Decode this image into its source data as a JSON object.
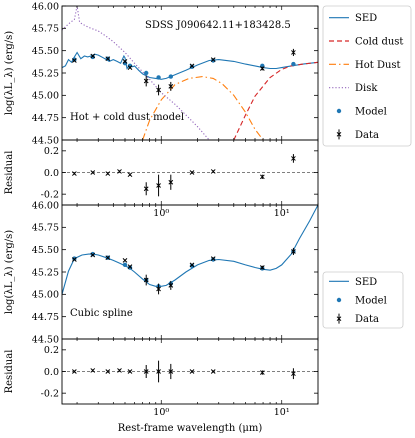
{
  "chart_data": {
    "type": "line",
    "xlabel": "Rest-frame wavelength (μm)",
    "x_axis": {
      "scale": "log",
      "range": [
        0.15,
        20
      ],
      "ticks": [
        1,
        10
      ],
      "tick_labels": [
        "10⁰",
        "10¹"
      ]
    },
    "panels": [
      {
        "id": "top-main",
        "annotation_object": "SDSS J090642.11+183428.5",
        "annotation_model": "Hot + cold dust model",
        "ylabel": "log(λL_λ) (erg/s)",
        "ylim": [
          44.5,
          46.0
        ],
        "yticks": [
          "46.00",
          "45.75",
          "45.50",
          "45.25",
          "45.00",
          "44.75",
          "44.50"
        ],
        "legend": {
          "placement": "outside-right",
          "entries": [
            {
              "label": "SED",
              "style": "solid",
              "color": "#1f77b4"
            },
            {
              "label": "Cold dust",
              "style": "dashed",
              "color": "#d62728"
            },
            {
              "label": "Hot Dust",
              "style": "dashdot",
              "color": "#ff7f0e"
            },
            {
              "label": "Disk",
              "style": "dotted",
              "color": "#9467bd"
            },
            {
              "label": "Model",
              "style": "marker-dot",
              "color": "#1f77b4"
            },
            {
              "label": "Data",
              "style": "marker-x-errorbar",
              "color": "#000000"
            }
          ]
        },
        "series": [
          {
            "name": "SED",
            "color": "#1f77b4",
            "style": "solid",
            "x": [
              0.15,
              0.16,
              0.17,
              0.18,
              0.19,
              0.2,
              0.215,
              0.23,
              0.245,
              0.26,
              0.28,
              0.3,
              0.33,
              0.37,
              0.4,
              0.43,
              0.46,
              0.49,
              0.5,
              0.52,
              0.55,
              0.58,
              0.6,
              0.65,
              0.7,
              0.8,
              0.9,
              1.0,
              1.1,
              1.3,
              1.6,
              2.0,
              2.5,
              3.0,
              4.0,
              5.0,
              6.0,
              7.0,
              8.0,
              9.0,
              10.0,
              12.0,
              15.0,
              20.0
            ],
            "y": [
              45.31,
              45.33,
              45.4,
              45.37,
              45.43,
              45.48,
              45.41,
              45.44,
              45.43,
              45.44,
              45.46,
              45.45,
              45.42,
              45.38,
              45.4,
              45.38,
              45.36,
              45.44,
              45.42,
              45.3,
              45.34,
              45.32,
              45.33,
              45.28,
              45.24,
              45.2,
              45.19,
              45.18,
              45.19,
              45.23,
              45.28,
              45.34,
              45.39,
              45.4,
              45.38,
              45.35,
              45.33,
              45.31,
              45.3,
              45.3,
              45.31,
              45.33,
              45.35,
              45.37
            ]
          },
          {
            "name": "Cold dust",
            "color": "#d62728",
            "style": "dashed",
            "x": [
              4.0,
              5.0,
              6.0,
              8.0,
              10.0,
              12.0,
              15.0,
              20.0
            ],
            "y": [
              44.5,
              44.78,
              44.99,
              45.2,
              45.29,
              45.33,
              45.35,
              45.37
            ]
          },
          {
            "name": "Hot Dust",
            "color": "#ff7f0e",
            "style": "dashdot",
            "x": [
              0.7,
              0.8,
              1.0,
              1.3,
              1.7,
              2.2,
              2.7,
              3.2,
              4.0,
              5.0,
              6.0,
              7.0
            ],
            "y": [
              44.5,
              44.72,
              44.95,
              45.12,
              45.19,
              45.21,
              45.19,
              45.13,
              45.0,
              44.81,
              44.62,
              44.5
            ]
          },
          {
            "name": "Disk",
            "color": "#9467bd",
            "style": "dotted",
            "x": [
              0.15,
              0.17,
              0.19,
              0.2,
              0.21,
              0.22,
              0.25,
              0.3,
              0.35,
              0.4,
              0.5,
              0.6,
              0.8,
              1.0,
              1.3,
              1.6,
              2.0,
              2.5
            ],
            "y": [
              45.73,
              45.8,
              45.85,
              46.0,
              45.82,
              45.8,
              45.76,
              45.72,
              45.66,
              45.6,
              45.48,
              45.36,
              45.18,
              45.03,
              44.9,
              44.78,
              44.65,
              44.5
            ]
          }
        ],
        "model_points": {
          "x": [
            0.19,
            0.27,
            0.36,
            0.5,
            0.55,
            0.75,
            0.95,
            1.2,
            1.8,
            2.7,
            6.9,
            12.5
          ],
          "y": [
            45.4,
            45.43,
            45.41,
            45.36,
            45.33,
            45.25,
            45.2,
            45.21,
            45.32,
            45.39,
            45.33,
            45.35
          ]
        },
        "data_points": {
          "x": [
            0.19,
            0.27,
            0.36,
            0.5,
            0.55,
            0.75,
            0.95,
            1.2,
            1.8,
            2.7,
            6.9,
            12.5
          ],
          "y": [
            45.39,
            45.44,
            45.41,
            45.38,
            45.31,
            45.16,
            45.06,
            45.1,
            45.33,
            45.4,
            45.3,
            45.48
          ],
          "yerr": [
            0.01,
            0.01,
            0.01,
            0.01,
            0.01,
            0.06,
            0.06,
            0.05,
            0.01,
            0.01,
            0.02,
            0.04
          ]
        }
      },
      {
        "id": "top-residual",
        "ylabel": "Residual",
        "ylim": [
          -0.3,
          0.3
        ],
        "yticks": [
          "0.2",
          "0.0",
          "-0.2"
        ],
        "reference_line": 0.0,
        "data_points": {
          "x": [
            0.19,
            0.27,
            0.36,
            0.45,
            0.55,
            0.75,
            0.95,
            1.2,
            1.8,
            2.7,
            6.9,
            12.5
          ],
          "y": [
            -0.01,
            0.0,
            -0.01,
            0.01,
            -0.02,
            -0.15,
            -0.12,
            -0.09,
            0.0,
            0.01,
            -0.04,
            0.13
          ],
          "yerr": [
            0.01,
            0.01,
            0.01,
            0.01,
            0.01,
            0.06,
            0.1,
            0.07,
            0.01,
            0.01,
            0.02,
            0.04
          ]
        }
      },
      {
        "id": "bottom-main",
        "annotation_model": "Cubic spline",
        "ylabel": "log(λL_λ) (erg/s)",
        "ylim": [
          44.5,
          46.0
        ],
        "yticks": [
          "46.00",
          "45.75",
          "45.50",
          "45.25",
          "45.00",
          "44.75",
          "44.50"
        ],
        "legend": {
          "placement": "outside-right",
          "entries": [
            {
              "label": "SED",
              "style": "solid",
              "color": "#1f77b4"
            },
            {
              "label": "Model",
              "style": "marker-dot",
              "color": "#1f77b4"
            },
            {
              "label": "Data",
              "style": "marker-x-errorbar",
              "color": "#000000"
            }
          ]
        },
        "series": [
          {
            "name": "SED",
            "color": "#1f77b4",
            "style": "solid",
            "x": [
              0.15,
              0.17,
              0.19,
              0.22,
              0.25,
              0.27,
              0.3,
              0.35,
              0.4,
              0.45,
              0.5,
              0.55,
              0.6,
              0.7,
              0.8,
              0.9,
              1.0,
              1.1,
              1.3,
              1.6,
              2.0,
              2.5,
              3.0,
              4.0,
              5.0,
              6.0,
              7.0,
              8.0,
              9.0,
              10.0,
              12.0,
              14.0,
              17.0,
              20.0
            ],
            "y": [
              45.0,
              45.26,
              45.4,
              45.44,
              45.45,
              45.45,
              45.44,
              45.41,
              45.38,
              45.35,
              45.32,
              45.29,
              45.25,
              45.17,
              45.11,
              45.09,
              45.09,
              45.1,
              45.16,
              45.25,
              45.33,
              45.38,
              45.39,
              45.37,
              45.33,
              45.3,
              45.28,
              45.27,
              45.29,
              45.33,
              45.45,
              45.62,
              45.82,
              46.0
            ]
          }
        ],
        "model_points": {
          "x": [
            0.19,
            0.27,
            0.36,
            0.5,
            0.55,
            0.75,
            0.95,
            1.2,
            1.8,
            2.7,
            6.9,
            12.5
          ],
          "y": [
            45.4,
            45.45,
            45.41,
            45.33,
            45.3,
            45.16,
            45.09,
            45.12,
            45.32,
            45.39,
            45.29,
            45.48
          ]
        },
        "data_points": {
          "x": [
            0.19,
            0.27,
            0.36,
            0.5,
            0.55,
            0.75,
            0.95,
            1.2,
            1.8,
            2.7,
            6.9,
            12.5
          ],
          "y": [
            45.39,
            45.44,
            45.41,
            45.38,
            45.31,
            45.16,
            45.06,
            45.1,
            45.33,
            45.4,
            45.3,
            45.48
          ],
          "yerr": [
            0.01,
            0.01,
            0.01,
            0.01,
            0.01,
            0.06,
            0.06,
            0.05,
            0.01,
            0.01,
            0.02,
            0.04
          ]
        }
      },
      {
        "id": "bottom-residual",
        "ylabel": "Residual",
        "ylim": [
          -0.3,
          0.3
        ],
        "yticks": [
          "0.2",
          "0.0",
          "-0.2"
        ],
        "reference_line": 0.0,
        "data_points": {
          "x": [
            0.19,
            0.27,
            0.36,
            0.45,
            0.55,
            0.75,
            0.95,
            1.2,
            1.8,
            2.7,
            6.9,
            12.5
          ],
          "y": [
            0.0,
            0.01,
            0.0,
            0.01,
            0.0,
            0.0,
            0.0,
            0.0,
            0.0,
            0.0,
            -0.01,
            -0.02
          ],
          "yerr": [
            0.01,
            0.01,
            0.01,
            0.01,
            0.01,
            0.06,
            0.1,
            0.07,
            0.01,
            0.01,
            0.02,
            0.05
          ]
        }
      }
    ]
  }
}
